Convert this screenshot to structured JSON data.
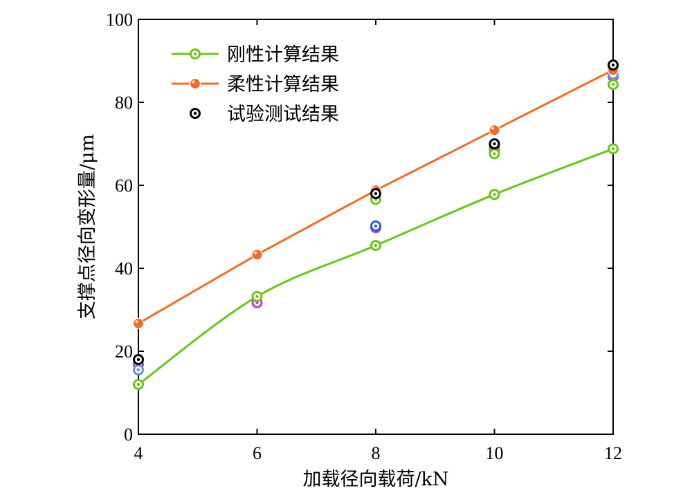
{
  "chart_data": {
    "type": "line",
    "xlabel": "加载径向载荷/kN",
    "ylabel": "支撑点径向变形量/μm",
    "xlim": [
      4,
      12
    ],
    "ylim": [
      0,
      100
    ],
    "xticks": [
      4,
      6,
      8,
      10,
      12
    ],
    "yticks": [
      0,
      20,
      40,
      60,
      80,
      100
    ],
    "grid": false,
    "legend_position": "top-left",
    "series": [
      {
        "name": "刚性计算结果",
        "color": "#6cc417",
        "marker": "open-circle-dot",
        "line": "smooth",
        "x": [
          4,
          6,
          8,
          10,
          12
        ],
        "y": [
          12,
          33.2,
          45.5,
          57.8,
          68.8
        ]
      },
      {
        "name": "柔性计算结果",
        "color": "#f26b21",
        "marker": "filled-circle",
        "line": "straight",
        "x": [
          4,
          6,
          8,
          10,
          12
        ],
        "y": [
          26.7,
          43.3,
          58.8,
          73.3,
          87.8
        ]
      },
      {
        "name": "试验测试结果",
        "color": "#000000",
        "marker": "open-circle-dot",
        "line": "none",
        "x": [
          4,
          8,
          10,
          12
        ],
        "y": [
          18,
          58,
          70,
          89
        ]
      }
    ],
    "extra_points": [
      {
        "color": "#c03cc8",
        "x": [
          4,
          6,
          8,
          10,
          12
        ],
        "y": [
          16.8,
          31.7,
          49.8,
          69.2,
          86.2
        ]
      },
      {
        "color": "#6a8de8",
        "x": [
          4,
          8,
          10,
          12
        ],
        "y": [
          15.5,
          50.2,
          68.8,
          86.8
        ]
      },
      {
        "color": "#e8332a",
        "x": [
          8,
          10,
          12
        ],
        "y": [
          58.3,
          69.8,
          88.6
        ]
      },
      {
        "color": "#2a5fd6",
        "x": [
          8
        ],
        "y": [
          50.2
        ]
      },
      {
        "color": "#6cc417",
        "x": [
          8,
          10,
          12
        ],
        "y": [
          56.6,
          67.6,
          84.3
        ]
      }
    ]
  }
}
